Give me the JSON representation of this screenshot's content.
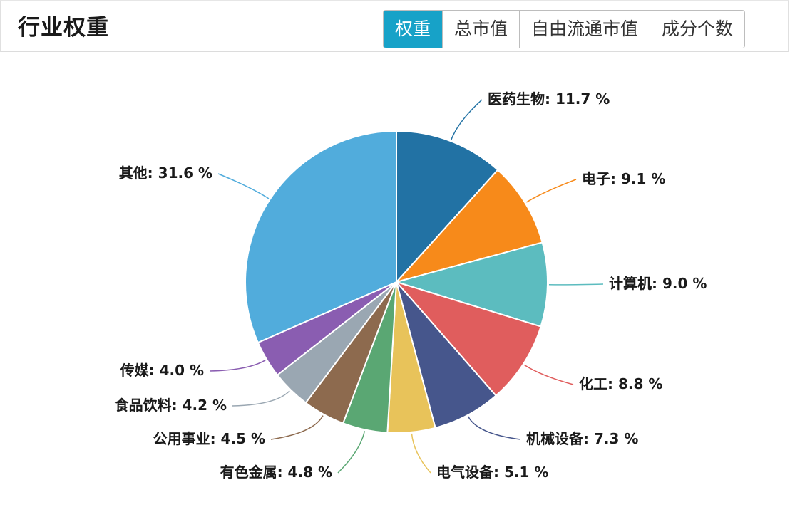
{
  "header": {
    "title": "行业权重",
    "tabs": [
      {
        "label": "权重",
        "active": true
      },
      {
        "label": "总市值",
        "active": false
      },
      {
        "label": "自由流通市值",
        "active": false
      },
      {
        "label": "成分个数",
        "active": false
      }
    ]
  },
  "chart_data": {
    "type": "pie",
    "title": "",
    "unit": "%",
    "slices": [
      {
        "label": "医药生物",
        "value": 11.7,
        "display": "医药生物: 11.7 %",
        "color": "#2272a4"
      },
      {
        "label": "电子",
        "value": 9.1,
        "display": "电子: 9.1 %",
        "color": "#f78a1a"
      },
      {
        "label": "计算机",
        "value": 9.0,
        "display": "计算机: 9.0 %",
        "color": "#5cbcbf"
      },
      {
        "label": "化工",
        "value": 8.8,
        "display": "化工: 8.8 %",
        "color": "#e05d5d"
      },
      {
        "label": "机械设备",
        "value": 7.3,
        "display": "机械设备: 7.3 %",
        "color": "#46568c"
      },
      {
        "label": "电气设备",
        "value": 5.1,
        "display": "电气设备: 5.1 %",
        "color": "#e8c35a"
      },
      {
        "label": "有色金属",
        "value": 4.8,
        "display": "有色金属: 4.8 %",
        "color": "#5aa773"
      },
      {
        "label": "公用事业",
        "value": 4.5,
        "display": "公用事业: 4.5 %",
        "color": "#8d6a4e"
      },
      {
        "label": "食品饮料",
        "value": 4.2,
        "display": "食品饮料: 4.2 %",
        "color": "#9aa7b2"
      },
      {
        "label": "传媒",
        "value": 4.0,
        "display": "传媒: 4.0 %",
        "color": "#8a5db1"
      },
      {
        "label": "其他",
        "value": 31.6,
        "display": "其他: 31.6 %",
        "color": "#51acdc"
      }
    ]
  }
}
